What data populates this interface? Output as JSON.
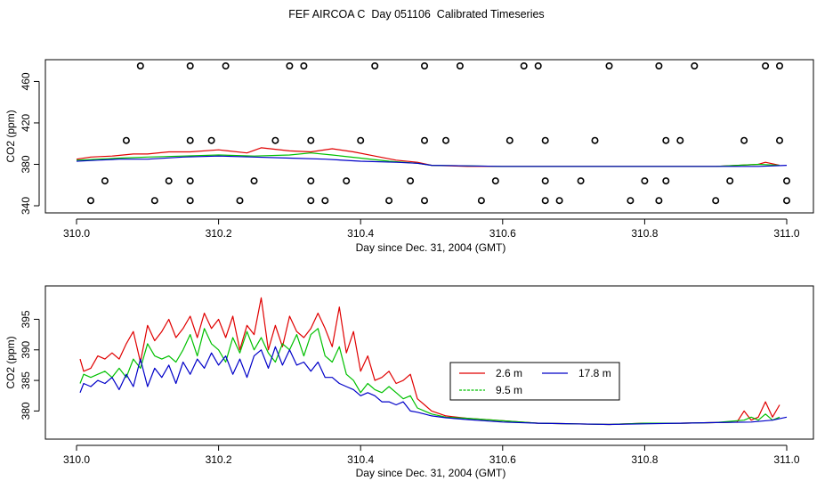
{
  "title": "FEF AIRCOA C  Day 051106  Calibrated Timeseries",
  "colors": {
    "s1": "#e00000",
    "s2": "#00c000",
    "s3": "#0000c8",
    "axis": "#000000"
  },
  "chart_data": [
    {
      "type": "line",
      "name": "top",
      "xlabel": "Day since Dec. 31, 2004 (GMT)",
      "ylabel": "CO2 (ppm)",
      "xlim": [
        310.0,
        311.0
      ],
      "ylim": [
        340,
        475
      ],
      "xticks": [
        "310.0",
        "310.2",
        "310.4",
        "310.6",
        "310.8",
        "311.0"
      ],
      "xtick_values": [
        310.0,
        310.2,
        310.4,
        310.6,
        310.8,
        311.0
      ],
      "yticks": [
        "340",
        "380",
        "420",
        "460"
      ],
      "ytick_values": [
        340,
        380,
        420,
        460
      ],
      "series": [
        {
          "name": "2.6 m",
          "color": "s1",
          "x": [
            310.0,
            310.02,
            310.05,
            310.08,
            310.1,
            310.13,
            310.16,
            310.2,
            310.24,
            310.26,
            310.3,
            310.33,
            310.36,
            310.39,
            310.42,
            310.45,
            310.48,
            310.5,
            310.55,
            310.63,
            310.7,
            310.8,
            310.9,
            310.96,
            310.97,
            310.99
          ],
          "y": [
            385,
            387,
            388,
            390,
            390,
            392,
            392,
            394,
            391,
            396,
            393,
            392,
            395,
            392,
            388,
            384,
            382,
            379,
            378,
            378,
            378,
            378,
            378,
            380,
            382,
            379
          ]
        },
        {
          "name": "9.5 m",
          "color": "s2",
          "x": [
            310.0,
            310.03,
            310.06,
            310.1,
            310.15,
            310.2,
            310.25,
            310.3,
            310.33,
            310.36,
            310.4,
            310.44,
            310.48,
            310.5,
            310.6,
            310.7,
            310.8,
            310.9,
            310.96,
            310.99
          ],
          "y": [
            384,
            385,
            386,
            387,
            388,
            389,
            388,
            389,
            391,
            389,
            386,
            383,
            381,
            379,
            378,
            378,
            378,
            378,
            380,
            379
          ]
        },
        {
          "name": "17.8 m",
          "color": "s3",
          "x": [
            310.0,
            310.03,
            310.06,
            310.1,
            310.15,
            310.2,
            310.25,
            310.3,
            310.35,
            310.4,
            310.45,
            310.48,
            310.5,
            310.6,
            310.7,
            310.8,
            310.9,
            310.96,
            311.0
          ],
          "y": [
            383,
            384,
            385,
            385,
            387,
            388,
            387,
            386,
            385,
            383,
            382,
            381,
            379,
            378,
            378,
            378,
            378,
            378,
            379
          ]
        }
      ],
      "status_points": {
        "label": "calibration/status markers",
        "x": [
          310.09,
          310.16,
          310.21,
          310.3,
          310.32,
          310.42,
          310.49,
          310.54,
          310.63,
          310.65,
          310.75,
          310.82,
          310.87,
          310.97,
          310.99,
          310.07,
          310.16,
          310.19,
          310.28,
          310.33,
          310.4,
          310.49,
          310.52,
          310.61,
          310.66,
          310.73,
          310.83,
          310.85,
          310.94,
          310.99,
          310.04,
          310.13,
          310.16,
          310.25,
          310.33,
          310.38,
          310.47,
          310.59,
          310.66,
          310.71,
          310.8,
          310.83,
          310.92,
          311.0,
          310.02,
          310.11,
          310.16,
          310.23,
          310.33,
          310.35,
          310.44,
          310.49,
          310.57,
          310.66,
          310.68,
          310.78,
          310.82,
          310.9,
          311.0
        ],
        "y": [
          475,
          475,
          475,
          475,
          475,
          475,
          475,
          475,
          475,
          475,
          475,
          475,
          475,
          475,
          475,
          403,
          403,
          403,
          403,
          403,
          403,
          403,
          403,
          403,
          403,
          403,
          403,
          403,
          403,
          403,
          364,
          364,
          364,
          364,
          364,
          364,
          364,
          364,
          364,
          364,
          364,
          364,
          364,
          364,
          345,
          345,
          345,
          345,
          345,
          345,
          345,
          345,
          345,
          345,
          345,
          345,
          345,
          345,
          345
        ]
      }
    },
    {
      "type": "line",
      "name": "bottom",
      "xlabel": "Day since Dec. 31, 2004 (GMT)",
      "ylabel": "CO2 (ppm)",
      "xlim": [
        310.0,
        311.0
      ],
      "ylim": [
        377,
        399
      ],
      "xticks": [
        "310.0",
        "310.2",
        "310.4",
        "310.6",
        "310.8",
        "311.0"
      ],
      "xtick_values": [
        310.0,
        310.2,
        310.4,
        310.6,
        310.8,
        311.0
      ],
      "yticks": [
        "380",
        "385",
        "390",
        "395"
      ],
      "ytick_values": [
        380,
        385,
        390,
        395
      ],
      "legend": {
        "position": "center-right",
        "entries": [
          "2.6 m",
          "9.5 m",
          "17.8 m"
        ]
      },
      "series": [
        {
          "name": "2.6 m",
          "color": "s1",
          "x": [
            310.005,
            310.01,
            310.02,
            310.03,
            310.04,
            310.05,
            310.06,
            310.07,
            310.08,
            310.09,
            310.1,
            310.11,
            310.12,
            310.13,
            310.14,
            310.15,
            310.16,
            310.17,
            310.18,
            310.19,
            310.2,
            310.21,
            310.22,
            310.23,
            310.24,
            310.25,
            310.26,
            310.27,
            310.28,
            310.29,
            310.3,
            310.31,
            310.32,
            310.33,
            310.34,
            310.35,
            310.36,
            310.37,
            310.38,
            310.39,
            310.4,
            310.41,
            310.42,
            310.43,
            310.44,
            310.45,
            310.46,
            310.47,
            310.48,
            310.49,
            310.5,
            310.52,
            310.55,
            310.6,
            310.65,
            310.7,
            310.75,
            310.8,
            310.85,
            310.9,
            310.93,
            310.94,
            310.95,
            310.96,
            310.97,
            310.98,
            310.99
          ],
          "y": [
            388.5,
            386.5,
            387.0,
            389.0,
            388.5,
            389.5,
            388.5,
            391.0,
            393.0,
            388.0,
            394.0,
            391.5,
            393.0,
            395.0,
            392.0,
            393.5,
            395.5,
            392.0,
            396.0,
            393.5,
            395.0,
            392.0,
            395.5,
            390.0,
            394.0,
            392.5,
            398.5,
            390.0,
            394.0,
            390.5,
            395.5,
            393.0,
            392.0,
            393.5,
            396.0,
            393.5,
            390.5,
            397.0,
            389.5,
            393.0,
            386.5,
            389.0,
            385.0,
            385.5,
            386.5,
            384.5,
            385.0,
            386.0,
            382.0,
            381.0,
            380.0,
            379.2,
            378.8,
            378.4,
            378.0,
            377.9,
            377.8,
            378.0,
            378.0,
            378.1,
            378.2,
            380.0,
            378.5,
            379.0,
            381.5,
            379.0,
            381.0
          ]
        },
        {
          "name": "9.5 m",
          "color": "s2",
          "x": [
            310.005,
            310.01,
            310.02,
            310.03,
            310.04,
            310.05,
            310.06,
            310.07,
            310.08,
            310.09,
            310.1,
            310.11,
            310.12,
            310.13,
            310.14,
            310.15,
            310.16,
            310.17,
            310.18,
            310.19,
            310.2,
            310.21,
            310.22,
            310.23,
            310.24,
            310.25,
            310.26,
            310.27,
            310.28,
            310.29,
            310.3,
            310.31,
            310.32,
            310.33,
            310.34,
            310.35,
            310.36,
            310.37,
            310.38,
            310.39,
            310.4,
            310.41,
            310.42,
            310.43,
            310.44,
            310.45,
            310.46,
            310.47,
            310.48,
            310.49,
            310.5,
            310.52,
            310.55,
            310.6,
            310.65,
            310.7,
            310.75,
            310.8,
            310.85,
            310.9,
            310.94,
            310.95,
            310.96,
            310.97,
            310.98,
            310.99
          ],
          "y": [
            384.5,
            386.0,
            385.5,
            386.0,
            386.5,
            385.5,
            387.0,
            385.5,
            388.5,
            387.0,
            391.0,
            389.0,
            388.5,
            389.0,
            388.0,
            390.0,
            392.5,
            389.0,
            393.5,
            391.0,
            390.0,
            388.0,
            392.0,
            389.5,
            393.0,
            390.0,
            392.0,
            389.5,
            388.0,
            391.0,
            390.0,
            392.5,
            389.0,
            392.5,
            393.5,
            389.0,
            388.0,
            390.5,
            386.0,
            385.0,
            383.0,
            384.5,
            383.5,
            383.0,
            384.0,
            383.0,
            382.0,
            382.5,
            380.5,
            380.0,
            379.5,
            379.0,
            378.8,
            378.4,
            378.0,
            377.9,
            377.8,
            378.0,
            378.0,
            378.1,
            378.5,
            379.0,
            378.5,
            379.5,
            378.5,
            379.0
          ]
        },
        {
          "name": "17.8 m",
          "color": "s3",
          "x": [
            310.005,
            310.01,
            310.02,
            310.03,
            310.04,
            310.05,
            310.06,
            310.07,
            310.08,
            310.09,
            310.1,
            310.11,
            310.12,
            310.13,
            310.14,
            310.15,
            310.16,
            310.17,
            310.18,
            310.19,
            310.2,
            310.21,
            310.22,
            310.23,
            310.24,
            310.25,
            310.26,
            310.27,
            310.28,
            310.29,
            310.3,
            310.31,
            310.32,
            310.33,
            310.34,
            310.35,
            310.36,
            310.37,
            310.38,
            310.39,
            310.4,
            310.41,
            310.42,
            310.43,
            310.44,
            310.45,
            310.46,
            310.47,
            310.48,
            310.49,
            310.5,
            310.52,
            310.55,
            310.6,
            310.65,
            310.7,
            310.75,
            310.8,
            310.85,
            310.9,
            310.95,
            310.98,
            311.0
          ],
          "y": [
            383.0,
            384.5,
            384.0,
            385.0,
            384.5,
            385.5,
            383.5,
            386.0,
            384.0,
            388.5,
            384.0,
            387.0,
            385.5,
            387.5,
            384.5,
            388.0,
            386.0,
            388.5,
            387.0,
            389.5,
            387.5,
            389.0,
            386.0,
            388.5,
            385.5,
            389.0,
            390.0,
            387.0,
            390.5,
            387.5,
            390.0,
            387.5,
            388.0,
            386.5,
            388.0,
            385.5,
            385.5,
            384.5,
            384.0,
            383.5,
            382.5,
            383.0,
            382.5,
            381.5,
            381.5,
            381.0,
            381.5,
            380.0,
            379.8,
            379.5,
            379.2,
            378.9,
            378.6,
            378.2,
            378.0,
            377.9,
            377.8,
            377.9,
            378.0,
            378.1,
            378.2,
            378.5,
            379.0
          ]
        }
      ]
    }
  ]
}
